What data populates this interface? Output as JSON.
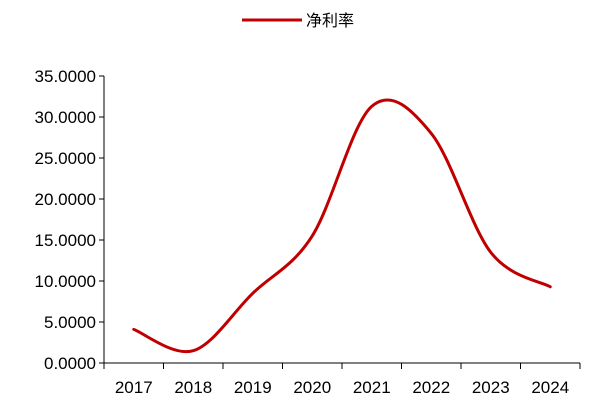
{
  "chart_data": {
    "type": "line",
    "categories": [
      "2017",
      "2018",
      "2019",
      "2020",
      "2021",
      "2022",
      "2023",
      "2024"
    ],
    "series": [
      {
        "name": "净利率",
        "values": [
          4.1,
          1.5,
          8.5,
          15.5,
          31.3,
          28.0,
          13.5,
          9.3
        ],
        "color": "#C00000"
      }
    ],
    "yticks": [
      "0.0000",
      "5.0000",
      "10.0000",
      "15.0000",
      "20.0000",
      "25.0000",
      "30.0000",
      "35.0000"
    ],
    "ylim": [
      0,
      35
    ],
    "grid": false,
    "legend": "top-center",
    "title": "",
    "xlabel": "",
    "ylabel": ""
  }
}
